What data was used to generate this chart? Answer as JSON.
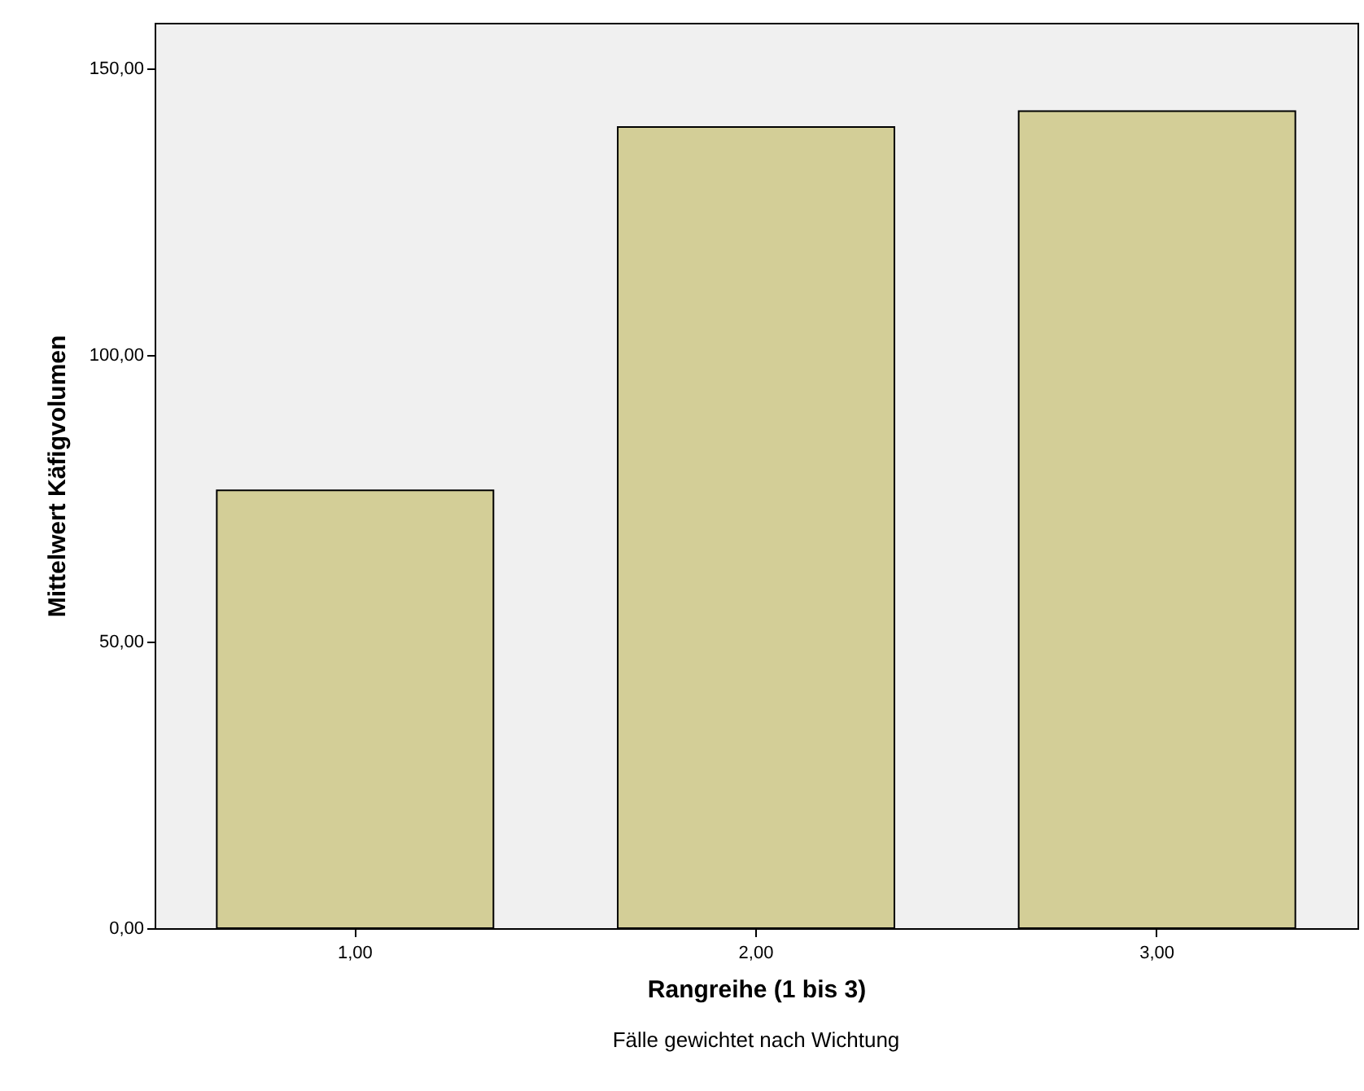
{
  "chart_data": {
    "type": "bar",
    "xlabel": "Rangreihe (1 bis 3)",
    "ylabel": "Mittelwert Käfigvolumen",
    "categories": [
      "1,00",
      "2,00",
      "3,00"
    ],
    "values": [
      76.4,
      139.8,
      142.6
    ],
    "color": "#d3ce97",
    "ylim": [
      0,
      158
    ],
    "yticks": [
      {
        "value": 0,
        "label": "0,00"
      },
      {
        "value": 50,
        "label": "50,00"
      },
      {
        "value": 100,
        "label": "100,00"
      },
      {
        "value": 150,
        "label": "150,00"
      }
    ],
    "grid": false,
    "annotations": [
      "Fälle gewichtet nach Wichtung"
    ]
  }
}
